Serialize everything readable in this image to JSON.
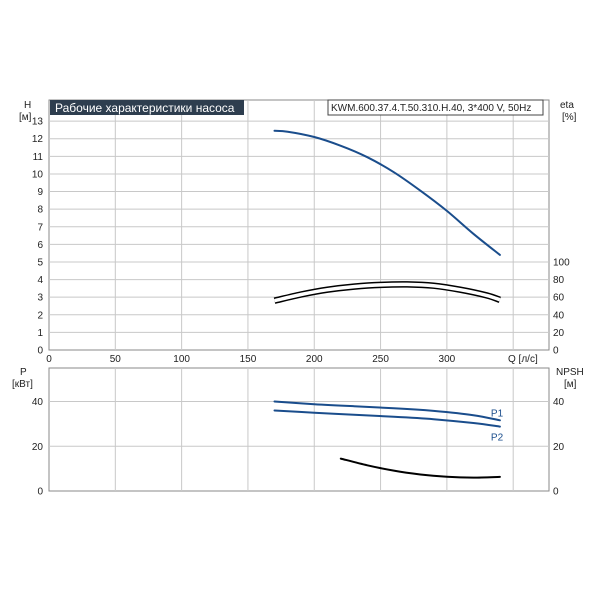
{
  "title": "Рабочие характеристики насоса",
  "model": "KWM.600.37.4.T.50.310.H.40, 3*400 V, 50Hz",
  "colors": {
    "blue": "#1a4d8c",
    "black": "#000000",
    "title_bg": "#2e3e4f"
  },
  "axes": {
    "h_label": "H",
    "h_unit": "[м]",
    "eta_label": "eta",
    "eta_unit": "[%]",
    "q_label": "Q [л/с]",
    "p_label": "P",
    "p_unit": "[кВт]",
    "npsh_label": "NPSH",
    "npsh_unit": "[м]"
  },
  "chart_data": [
    {
      "type": "line",
      "panel": "top",
      "xlim": [
        0,
        377
      ],
      "ylim": [
        0,
        14.2
      ],
      "y2lim": [
        0,
        14.2
      ],
      "x_ticks": [
        "0",
        "50",
        "100",
        "150",
        "200",
        "250",
        "300"
      ],
      "x_tick_values": [
        0,
        50,
        100,
        150,
        200,
        250,
        300
      ],
      "y_ticks": [
        "0",
        "1",
        "2",
        "3",
        "4",
        "5",
        "6",
        "7",
        "8",
        "9",
        "10",
        "11",
        "12",
        "13"
      ],
      "y_tick_values": [
        0,
        1,
        2,
        3,
        4,
        5,
        6,
        7,
        8,
        9,
        10,
        11,
        12,
        13
      ],
      "y2_ticks": [
        "0",
        "20",
        "40",
        "60",
        "80",
        "100"
      ],
      "y2_tick_values": [
        0,
        20,
        40,
        60,
        80,
        100
      ],
      "grid": true,
      "series": [
        {
          "axis": "H",
          "color": "#1a4d8c",
          "double": false,
          "x": [
            170,
            180,
            200,
            220,
            240,
            260,
            280,
            300,
            320,
            340
          ],
          "y": [
            12.45,
            12.4,
            12.1,
            11.6,
            10.95,
            10.1,
            9.05,
            7.9,
            6.6,
            5.4
          ]
        },
        {
          "axis": "eta",
          "color": "#000000",
          "double": true,
          "x": [
            170,
            190,
            210,
            230,
            250,
            270,
            290,
            310,
            330,
            340
          ],
          "y": [
            56,
            63,
            68.5,
            72,
            74,
            74.5,
            73,
            68.5,
            62,
            57
          ]
        }
      ]
    },
    {
      "type": "line",
      "panel": "bottom",
      "xlim": [
        0,
        377
      ],
      "ylim": [
        0,
        55
      ],
      "y_ticks": [
        "0",
        "20",
        "40"
      ],
      "y_tick_values": [
        0,
        20,
        40
      ],
      "y2_ticks": [
        "0",
        "20",
        "40"
      ],
      "y2_tick_values": [
        0,
        20,
        40
      ],
      "grid": true,
      "series": [
        {
          "name": "P1",
          "color": "#1a4d8c",
          "double": false,
          "x": [
            170,
            200,
            230,
            260,
            290,
            320,
            340
          ],
          "y": [
            40,
            38.8,
            37.9,
            37,
            35.8,
            33.9,
            31.6
          ]
        },
        {
          "name": "P2",
          "color": "#1a4d8c",
          "double": false,
          "x": [
            170,
            200,
            230,
            260,
            290,
            320,
            340
          ],
          "y": [
            36,
            35,
            34.1,
            33.2,
            32.1,
            30.4,
            28.8
          ]
        },
        {
          "axis": "NPSH",
          "color": "#000000",
          "double": false,
          "x": [
            220,
            240,
            260,
            280,
            300,
            320,
            340
          ],
          "y": [
            14.5,
            11.5,
            9.1,
            7.4,
            6.4,
            6.0,
            6.3
          ]
        }
      ]
    }
  ]
}
